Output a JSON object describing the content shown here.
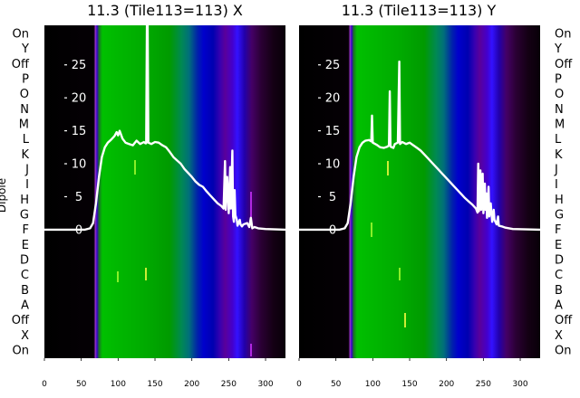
{
  "chart_data": [
    {
      "type": "line",
      "title": "11.3 (Tile113=113) X",
      "ylabel": "Dipole",
      "row_labels": [
        "On",
        "Y",
        "Off",
        "P",
        "O",
        "N",
        "M",
        "L",
        "K",
        "J",
        "I",
        "H",
        "G",
        "F",
        "E",
        "D",
        "C",
        "B",
        "A",
        "Off",
        "X",
        "On"
      ],
      "xlim": [
        0,
        327
      ],
      "ylim": [
        -19.5,
        31
      ],
      "x_ticks": [
        0,
        50,
        100,
        150,
        200,
        250,
        300
      ],
      "y_ticks": [
        0,
        5,
        10,
        15,
        20,
        25
      ],
      "background": "waterfall spectrogram (black / purple / blue / green)",
      "series": [
        {
          "values": [
            [
              0,
              0
            ],
            [
              55,
              0
            ],
            [
              62,
              0.2
            ],
            [
              66,
              1
            ],
            [
              70,
              4
            ],
            [
              74,
              8
            ],
            [
              78,
              11
            ],
            [
              82,
              12.5
            ],
            [
              86,
              13.2
            ],
            [
              90,
              13.6
            ],
            [
              95,
              14.2
            ],
            [
              98,
              14.8
            ],
            [
              100,
              14.3
            ],
            [
              102,
              15
            ],
            [
              106,
              13.8
            ],
            [
              110,
              13.2
            ],
            [
              115,
              13
            ],
            [
              120,
              12.8
            ],
            [
              125,
              13.5
            ],
            [
              130,
              13
            ],
            [
              135,
              13.3
            ],
            [
              137,
              13.1
            ],
            [
              138,
              13.1
            ],
            [
              139,
              31
            ],
            [
              140,
              31
            ],
            [
              141,
              13.2
            ],
            [
              145,
              13
            ],
            [
              150,
              13.3
            ],
            [
              155,
              13.2
            ],
            [
              160,
              12.8
            ],
            [
              165,
              12.5
            ],
            [
              170,
              11.8
            ],
            [
              175,
              11
            ],
            [
              180,
              10.5
            ],
            [
              185,
              10
            ],
            [
              190,
              9.2
            ],
            [
              195,
              8.6
            ],
            [
              200,
              8
            ],
            [
              205,
              7.3
            ],
            [
              210,
              6.8
            ],
            [
              215,
              6.5
            ],
            [
              220,
              5.8
            ],
            [
              225,
              5.2
            ],
            [
              230,
              4.6
            ],
            [
              235,
              4
            ],
            [
              240,
              3.6
            ],
            [
              243,
              3.2
            ],
            [
              245,
              10.4
            ],
            [
              246,
              3
            ],
            [
              248,
              8
            ],
            [
              250,
              2.5
            ],
            [
              252,
              9.5
            ],
            [
              253,
              3.2
            ],
            [
              255,
              12
            ],
            [
              256,
              2
            ],
            [
              257,
              1.2
            ],
            [
              258,
              6
            ],
            [
              259,
              2.2
            ],
            [
              261,
              1.5
            ],
            [
              262,
              0.6
            ],
            [
              265,
              1.5
            ],
            [
              266,
              0.8
            ],
            [
              268,
              0.5
            ],
            [
              270,
              0.8
            ],
            [
              275,
              1
            ],
            [
              278,
              0.4
            ],
            [
              280,
              1.8
            ],
            [
              282,
              0.2
            ],
            [
              285,
              0.4
            ],
            [
              290,
              0.2
            ],
            [
              300,
              0.1
            ],
            [
              327,
              0
            ]
          ]
        }
      ]
    },
    {
      "type": "line",
      "title": "11.3 (Tile113=113) Y",
      "row_labels": [
        "On",
        "Y",
        "Off",
        "P",
        "O",
        "N",
        "M",
        "L",
        "K",
        "J",
        "I",
        "H",
        "G",
        "F",
        "E",
        "D",
        "C",
        "B",
        "A",
        "Off",
        "X",
        "On"
      ],
      "xlim": [
        0,
        327
      ],
      "ylim": [
        -19.5,
        31
      ],
      "x_ticks": [
        0,
        50,
        100,
        150,
        200,
        250,
        300
      ],
      "y_ticks": [
        0,
        5,
        10,
        15,
        20,
        25
      ],
      "background": "waterfall spectrogram (black / purple / blue / green)",
      "series": [
        {
          "values": [
            [
              0,
              0
            ],
            [
              55,
              0
            ],
            [
              62,
              0.2
            ],
            [
              66,
              1
            ],
            [
              70,
              4
            ],
            [
              74,
              8
            ],
            [
              78,
              11
            ],
            [
              82,
              12.5
            ],
            [
              86,
              13.2
            ],
            [
              90,
              13.5
            ],
            [
              95,
              13.6
            ],
            [
              98,
              13.4
            ],
            [
              99,
              17.3
            ],
            [
              100,
              13.2
            ],
            [
              105,
              12.9
            ],
            [
              110,
              12.5
            ],
            [
              115,
              12.4
            ],
            [
              120,
              12.6
            ],
            [
              122,
              12.8
            ],
            [
              123,
              21
            ],
            [
              124,
              12.6
            ],
            [
              128,
              12.4
            ],
            [
              130,
              13
            ],
            [
              134,
              13.2
            ],
            [
              136,
              25.5
            ],
            [
              137,
              13
            ],
            [
              140,
              13.3
            ],
            [
              145,
              13
            ],
            [
              150,
              13.2
            ],
            [
              155,
              12.8
            ],
            [
              160,
              12.4
            ],
            [
              165,
              12
            ],
            [
              170,
              11.4
            ],
            [
              175,
              10.8
            ],
            [
              180,
              10.2
            ],
            [
              185,
              9.6
            ],
            [
              190,
              9
            ],
            [
              195,
              8.4
            ],
            [
              200,
              7.8
            ],
            [
              205,
              7.2
            ],
            [
              210,
              6.6
            ],
            [
              215,
              6
            ],
            [
              220,
              5.4
            ],
            [
              225,
              4.8
            ],
            [
              230,
              4.3
            ],
            [
              235,
              3.8
            ],
            [
              240,
              3.2
            ],
            [
              242,
              2.6
            ],
            [
              243,
              10
            ],
            [
              244,
              2.8
            ],
            [
              246,
              9
            ],
            [
              247,
              3
            ],
            [
              249,
              8.5
            ],
            [
              250,
              2.5
            ],
            [
              252,
              7
            ],
            [
              253,
              3
            ],
            [
              254,
              5.5
            ],
            [
              255,
              1.8
            ],
            [
              257,
              6.5
            ],
            [
              258,
              2
            ],
            [
              260,
              4
            ],
            [
              262,
              1.2
            ],
            [
              264,
              3
            ],
            [
              265,
              1.5
            ],
            [
              268,
              0.8
            ],
            [
              270,
              2
            ],
            [
              271,
              0.6
            ],
            [
              275,
              0.5
            ],
            [
              280,
              0.3
            ],
            [
              290,
              0.1
            ],
            [
              327,
              0
            ]
          ]
        }
      ]
    }
  ]
}
